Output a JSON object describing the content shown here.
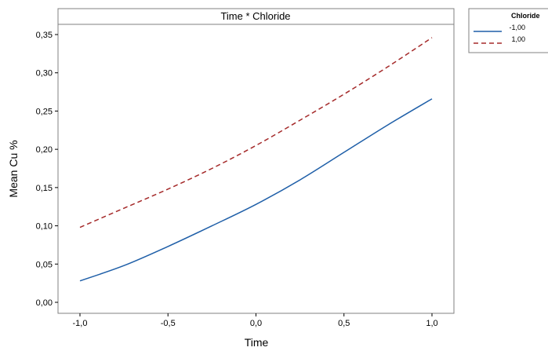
{
  "chart_data": {
    "type": "line",
    "title": "Time * Chloride",
    "xlabel": "Time",
    "ylabel": "Mean Cu %",
    "xlim": [
      -1.0,
      1.0
    ],
    "ylim": [
      0.0,
      0.35
    ],
    "x_ticks": [
      "-1,0",
      "-0,5",
      "0,0",
      "0,5",
      "1,0"
    ],
    "y_ticks": [
      "0,00",
      "0,05",
      "0,10",
      "0,15",
      "0,20",
      "0,25",
      "0,30",
      "0,35"
    ],
    "x": [
      -1.0,
      -0.75,
      -0.5,
      -0.25,
      0.0,
      0.25,
      0.5,
      0.75,
      1.0
    ],
    "series": [
      {
        "name": "-1,00",
        "color": "#1f5fa8",
        "dash": "solid",
        "values": [
          0.028,
          0.048,
          0.073,
          0.1,
          0.128,
          0.16,
          0.196,
          0.232,
          0.266
        ]
      },
      {
        "name": "1,00",
        "color": "#a52a2a",
        "dash": "dashed",
        "values": [
          0.098,
          0.123,
          0.148,
          0.175,
          0.205,
          0.238,
          0.272,
          0.308,
          0.346
        ]
      }
    ],
    "legend": {
      "title": "Chloride",
      "placement": "top-right-outside"
    },
    "grid": false
  }
}
